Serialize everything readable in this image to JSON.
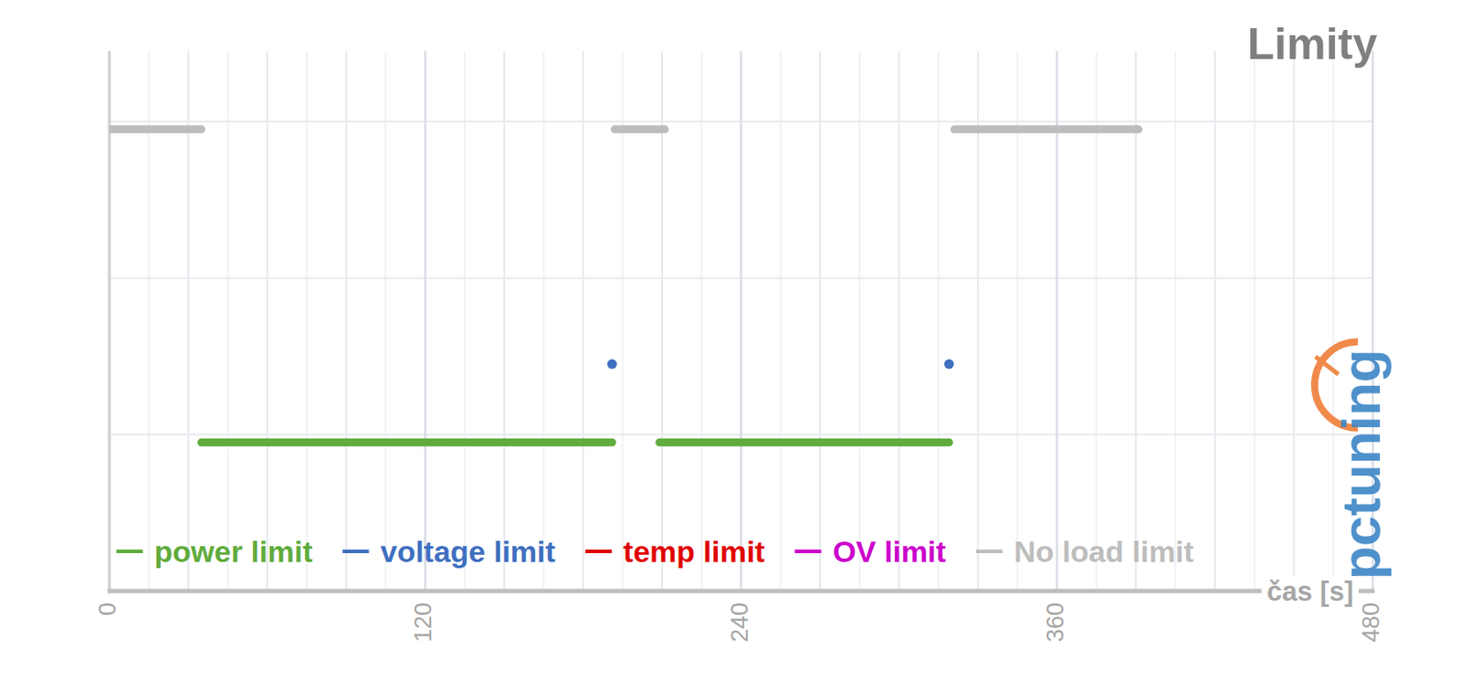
{
  "chart_data": {
    "type": "line",
    "title": "Limity",
    "x_label": "čas [s]",
    "watermark": "pctuning",
    "x": [
      0,
      35,
      36,
      191,
      192,
      209,
      211,
      319,
      320,
      321,
      391
    ],
    "series": [
      {
        "name": "power limit",
        "color": "#5fab3c",
        "values": [
          null,
          0.95,
          0.95,
          0.95,
          null,
          0.95,
          0.95,
          0.95,
          null,
          null,
          null
        ]
      },
      {
        "name": "voltage limit",
        "color": "#3f6fc0",
        "values": [
          null,
          null,
          null,
          1.45,
          null,
          null,
          null,
          1.45,
          null,
          null,
          null
        ]
      },
      {
        "name": "temp limit",
        "color": "#e00000",
        "values": [
          null,
          null,
          null,
          null,
          null,
          null,
          null,
          null,
          null,
          null,
          null
        ]
      },
      {
        "name": "OV limit",
        "color": "#cc00cc",
        "values": [
          null,
          null,
          null,
          null,
          null,
          null,
          null,
          null,
          null,
          null,
          null
        ]
      },
      {
        "name": "No load limit",
        "color": "#bdbdbd",
        "values": [
          2.95,
          2.95,
          null,
          null,
          2.95,
          2.95,
          2.95,
          null,
          null,
          2.95,
          2.95
        ]
      }
    ],
    "xlim": [
      0,
      480
    ],
    "xticks": [
      0,
      120,
      240,
      360,
      480
    ],
    "ylim": [
      0,
      3.45
    ],
    "yticks": [
      0,
      1,
      2,
      3
    ],
    "tick_labels": "x",
    "grid": true,
    "legend": "bottom"
  }
}
